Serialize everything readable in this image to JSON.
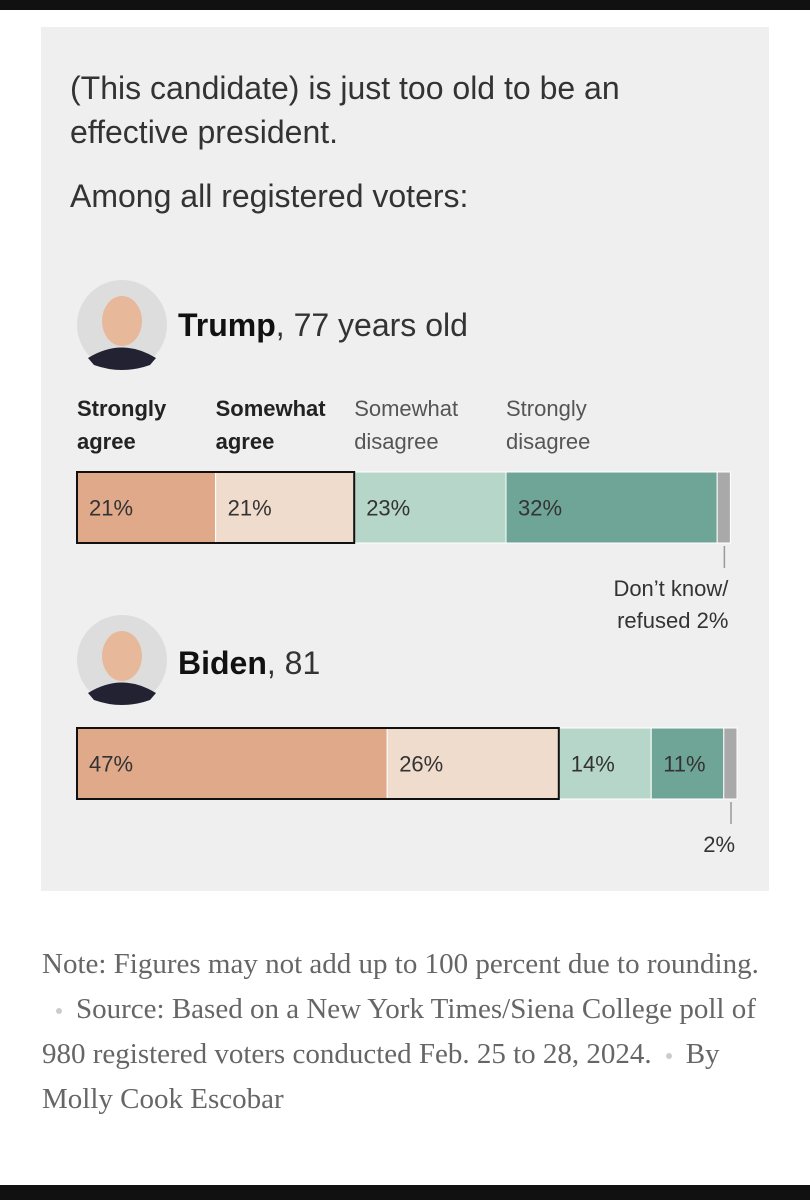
{
  "chart_data": {
    "type": "bar",
    "orientation": "horizontal",
    "stacked": true,
    "title": "(This candidate) is just too old to be an effective president.",
    "subtitle": "Among all registered voters:",
    "categories": [
      "Trump",
      "Biden"
    ],
    "category_notes": [
      ", 77 years old",
      ", 81"
    ],
    "xlim": [
      0,
      100
    ],
    "series": [
      {
        "name": "Strongly agree",
        "color": "#dfa98a",
        "values": [
          21,
          47
        ],
        "value_labels": [
          "21%",
          "47%"
        ],
        "outlined": true
      },
      {
        "name": "Somewhat agree",
        "color": "#f0dccd",
        "values": [
          21,
          26
        ],
        "value_labels": [
          "21%",
          "26%"
        ],
        "outlined": true
      },
      {
        "name": "Somewhat disagree",
        "color": "#b5d6c9",
        "values": [
          23,
          14
        ],
        "value_labels": [
          "23%",
          "14%"
        ]
      },
      {
        "name": "Strongly disagree",
        "color": "#6fa596",
        "values": [
          32,
          11
        ],
        "value_labels": [
          "32%",
          "11%"
        ]
      },
      {
        "name": "Don’t know/ refused",
        "color": "#a9a9a9",
        "values": [
          2,
          2
        ],
        "value_labels": [
          "2%",
          "2%"
        ],
        "label_position": "below"
      }
    ],
    "note": "Note: Figures may not add up to 100 percent due to rounding.",
    "source": "Source: Based on a New York Times/Siena College poll of 980 registered voters conducted Feb. 25 to 28, 2024.",
    "byline": "By Molly Cook Escobar"
  }
}
